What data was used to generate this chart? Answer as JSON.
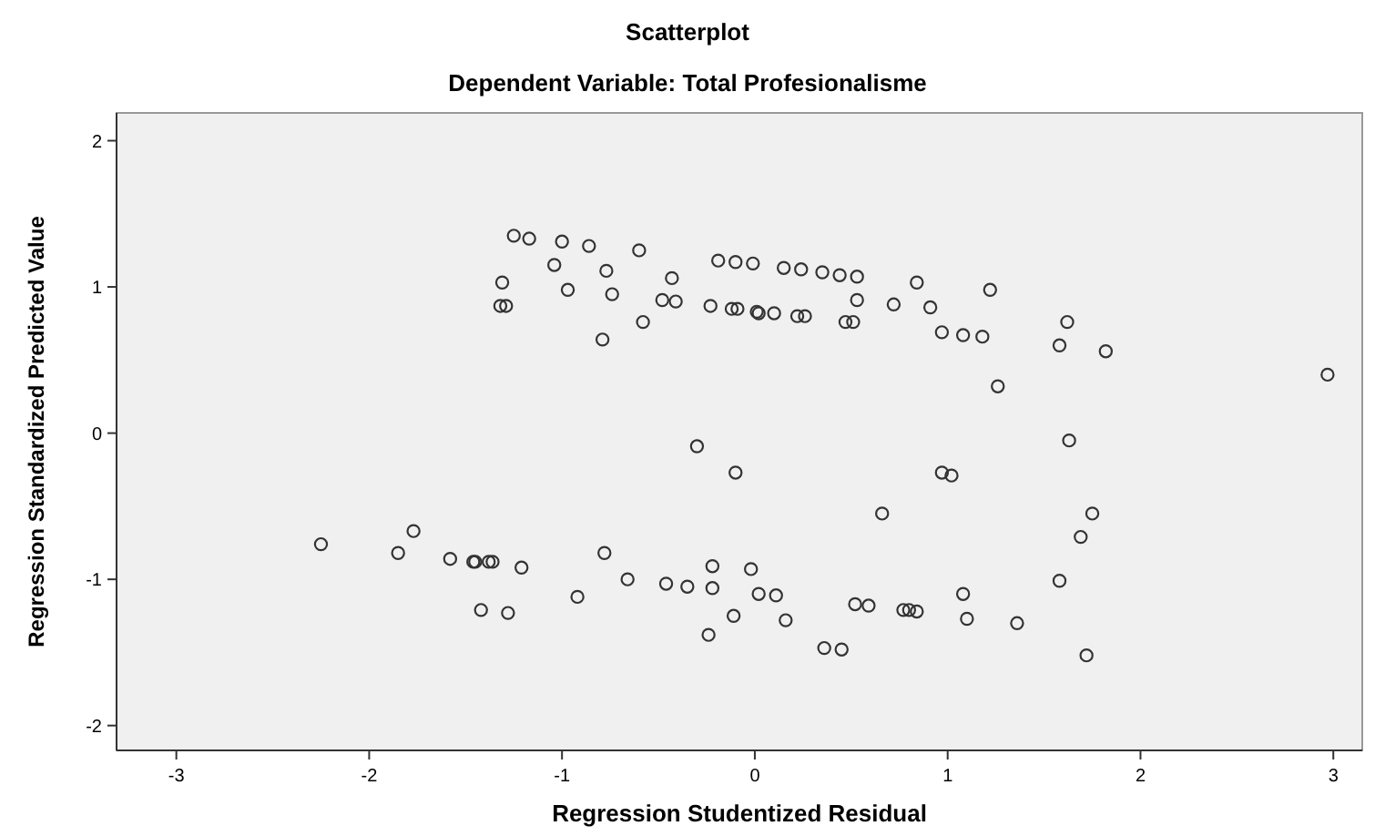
{
  "chart_data": {
    "type": "scatter",
    "title": "Scatterplot",
    "subtitle": "Dependent Variable: Total Profesionalisme",
    "xlabel": "Regression Studentized Residual",
    "ylabel": "Regression Standardized Predicted Value",
    "xlim": [
      -3.31,
      3.15
    ],
    "ylim": [
      -2.17,
      2.19
    ],
    "xticks": [
      -3,
      -2,
      -1,
      0,
      1,
      2,
      3
    ],
    "yticks": [
      -2,
      -1,
      0,
      1,
      2
    ],
    "grid": false,
    "marker": "circle",
    "series": [
      {
        "color": "#333333",
        "x": [
          -1.25,
          -1.17,
          -1.0,
          -0.86,
          -0.6,
          -1.04,
          -0.77,
          -0.43,
          -1.31,
          -0.97,
          -0.74,
          -0.48,
          -0.41,
          -1.32,
          -1.29,
          -0.58,
          -0.79,
          -0.19,
          -0.1,
          -0.01,
          -0.23,
          -0.12,
          -0.09,
          0.01,
          0.15,
          0.24,
          0.35,
          0.44,
          0.53,
          0.84,
          1.22,
          0.53,
          0.72,
          0.91,
          0.02,
          0.1,
          0.22,
          0.26,
          0.47,
          0.51,
          0.97,
          1.08,
          1.18,
          1.62,
          1.58,
          1.82,
          1.26,
          2.97,
          -0.3,
          -0.1,
          1.63,
          0.97,
          1.02,
          0.66,
          1.75,
          1.69,
          -2.25,
          -1.85,
          -1.77,
          -1.58,
          -1.46,
          -1.45,
          -1.38,
          -1.36,
          -1.21,
          -0.78,
          -0.66,
          -0.92,
          -1.42,
          -1.28,
          -0.46,
          -0.35,
          -0.22,
          -0.22,
          -0.02,
          0.02,
          0.11,
          -0.11,
          -0.24,
          0.16,
          0.36,
          0.45,
          0.52,
          0.59,
          0.77,
          0.8,
          0.84,
          1.08,
          1.1,
          1.36,
          1.58,
          1.72
        ],
        "values": [
          1.35,
          1.33,
          1.31,
          1.28,
          1.25,
          1.15,
          1.11,
          1.06,
          1.03,
          0.98,
          0.95,
          0.91,
          0.9,
          0.87,
          0.87,
          0.76,
          0.64,
          1.18,
          1.17,
          1.16,
          0.87,
          0.85,
          0.85,
          0.83,
          1.13,
          1.12,
          1.1,
          1.08,
          1.07,
          1.03,
          0.98,
          0.91,
          0.88,
          0.86,
          0.82,
          0.82,
          0.8,
          0.8,
          0.76,
          0.76,
          0.69,
          0.67,
          0.66,
          0.76,
          0.6,
          0.56,
          0.32,
          0.4,
          -0.09,
          -0.27,
          -0.05,
          -0.27,
          -0.29,
          -0.55,
          -0.55,
          -0.71,
          -0.76,
          -0.82,
          -0.67,
          -0.86,
          -0.88,
          -0.88,
          -0.88,
          -0.88,
          -0.92,
          -0.82,
          -1.0,
          -1.12,
          -1.21,
          -1.23,
          -1.03,
          -1.05,
          -0.91,
          -1.06,
          -0.93,
          -1.1,
          -1.11,
          -1.25,
          -1.38,
          -1.28,
          -1.47,
          -1.48,
          -1.17,
          -1.18,
          -1.21,
          -1.21,
          -1.22,
          -1.1,
          -1.27,
          -1.3,
          -1.01,
          -1.52
        ]
      }
    ]
  }
}
